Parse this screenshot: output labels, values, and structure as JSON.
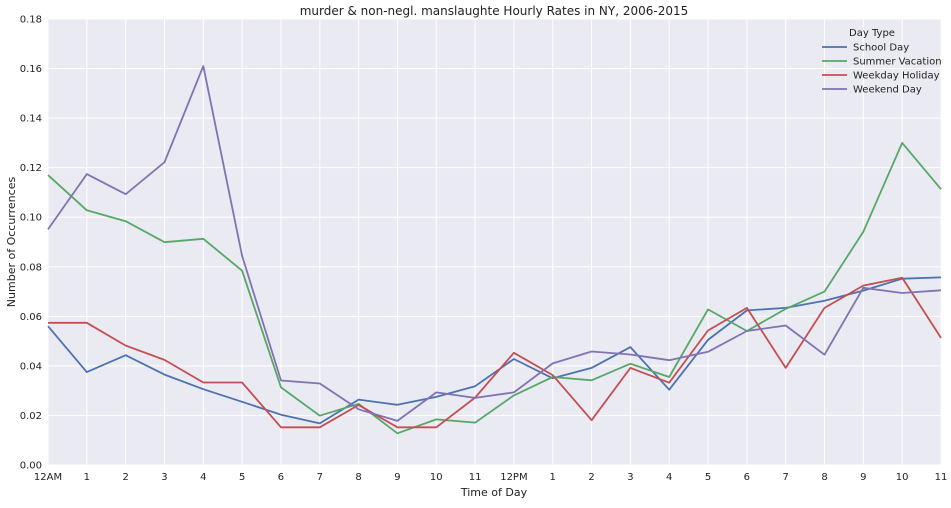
{
  "chart_data": {
    "type": "line",
    "title": "murder & non-negl. manslaughte Hourly Rates in NY, 2006-2015",
    "xlabel": "Time of Day",
    "ylabel": "Number of Occurrences",
    "x_tick_labels": [
      "12AM",
      "1",
      "2",
      "3",
      "4",
      "5",
      "6",
      "7",
      "8",
      "9",
      "10",
      "11",
      "12PM",
      "1",
      "2",
      "3",
      "4",
      "5",
      "6",
      "7",
      "8",
      "9",
      "10",
      "11"
    ],
    "ylim": [
      0,
      0.18
    ],
    "y_ticks": [
      0.0,
      0.02,
      0.04,
      0.06,
      0.08,
      0.1,
      0.12,
      0.14,
      0.16,
      0.18
    ],
    "y_tick_labels": [
      "0.00",
      "0.02",
      "0.04",
      "0.06",
      "0.08",
      "0.10",
      "0.12",
      "0.14",
      "0.16",
      "0.18"
    ],
    "grid": true,
    "legend": {
      "title": "Day Type",
      "placement": "top-right"
    },
    "series": [
      {
        "name": "School Day",
        "color": "#4c72b0",
        "values": [
          0.056,
          0.0375,
          0.0443,
          0.0365,
          0.0306,
          0.0255,
          0.0203,
          0.0168,
          0.0264,
          0.0243,
          0.0275,
          0.0318,
          0.0428,
          0.035,
          0.0392,
          0.0476,
          0.0304,
          0.0505,
          0.0624,
          0.0634,
          0.0663,
          0.0704,
          0.0752,
          0.0757
        ]
      },
      {
        "name": "Summer Vacation",
        "color": "#55a868",
        "values": [
          0.117,
          0.1028,
          0.0984,
          0.0899,
          0.0913,
          0.0784,
          0.0313,
          0.0199,
          0.0247,
          0.0128,
          0.0184,
          0.0171,
          0.0281,
          0.0355,
          0.0342,
          0.0409,
          0.0355,
          0.0628,
          0.0541,
          0.063,
          0.07,
          0.0941,
          0.13,
          0.1113
        ]
      },
      {
        "name": "Weekday Holiday",
        "color": "#c44e52",
        "values": [
          0.0574,
          0.0574,
          0.0482,
          0.0424,
          0.0333,
          0.0333,
          0.0152,
          0.0152,
          0.0242,
          0.0152,
          0.0152,
          0.0272,
          0.0453,
          0.0363,
          0.0181,
          0.0392,
          0.0332,
          0.0543,
          0.0634,
          0.0392,
          0.0634,
          0.0724,
          0.0756,
          0.0513
        ]
      },
      {
        "name": "Weekend Day",
        "color": "#8172b2",
        "values": [
          0.0951,
          0.1174,
          0.1093,
          0.1222,
          0.161,
          0.0844,
          0.0341,
          0.0329,
          0.0225,
          0.0178,
          0.0293,
          0.0271,
          0.0293,
          0.041,
          0.0458,
          0.0446,
          0.0423,
          0.0457,
          0.0541,
          0.0563,
          0.0445,
          0.0715,
          0.0694,
          0.0705
        ]
      }
    ]
  }
}
